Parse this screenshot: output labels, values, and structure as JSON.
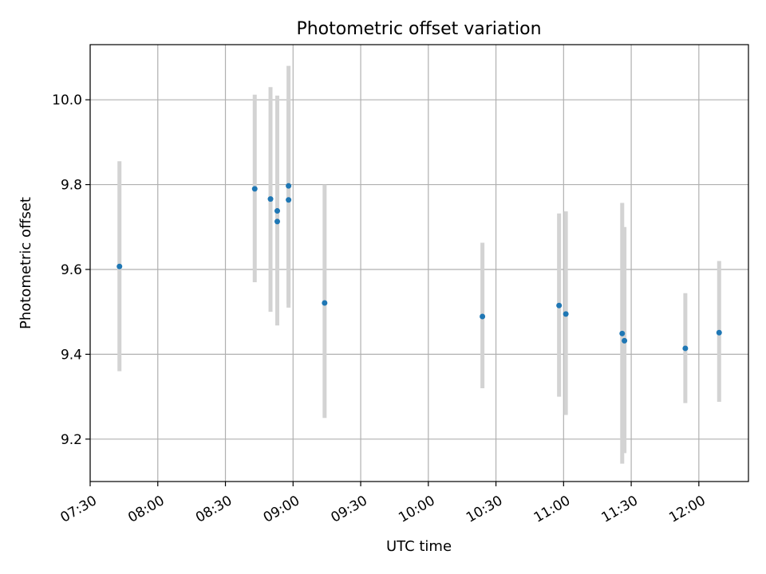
{
  "chart_data": {
    "type": "scatter",
    "title": "Photometric offset variation",
    "xlabel": "UTC time",
    "ylabel": "Photometric offset",
    "x_kind": "time",
    "xlim": [
      "07:30",
      "12:22"
    ],
    "ylim": [
      9.1,
      10.13
    ],
    "grid": true,
    "x_ticks": [
      "07:30",
      "08:00",
      "08:30",
      "09:00",
      "09:30",
      "10:00",
      "10:30",
      "11:00",
      "11:30",
      "12:00"
    ],
    "y_ticks": [
      9.2,
      9.4,
      9.6,
      9.8,
      10.0
    ],
    "y_tick_labels": [
      "9.2",
      "9.4",
      "9.6",
      "9.8",
      "10.0"
    ],
    "marker_color": "#1f77b4",
    "errorbar_color": "#d3d3d3",
    "points": [
      {
        "x": "07:43",
        "y": 9.607,
        "yerr_low": 9.36,
        "yerr_high": 9.855
      },
      {
        "x": "08:43",
        "y": 9.79,
        "yerr_low": 9.57,
        "yerr_high": 10.012
      },
      {
        "x": "08:50",
        "y": 9.766,
        "yerr_low": 9.5,
        "yerr_high": 10.03
      },
      {
        "x": "08:53",
        "y": 9.713,
        "yerr_low": 9.48,
        "yerr_high": 9.945
      },
      {
        "x": "08:53",
        "y": 9.738,
        "yerr_low": 9.468,
        "yerr_high": 10.01
      },
      {
        "x": "08:58",
        "y": 9.797,
        "yerr_low": 9.51,
        "yerr_high": 10.08
      },
      {
        "x": "08:58",
        "y": 9.764,
        "yerr_low": 9.52,
        "yerr_high": 10.0
      },
      {
        "x": "09:14",
        "y": 9.521,
        "yerr_low": 9.25,
        "yerr_high": 9.8
      },
      {
        "x": "10:24",
        "y": 9.489,
        "yerr_low": 9.32,
        "yerr_high": 9.663
      },
      {
        "x": "10:58",
        "y": 9.515,
        "yerr_low": 9.3,
        "yerr_high": 9.732
      },
      {
        "x": "11:01",
        "y": 9.495,
        "yerr_low": 9.257,
        "yerr_high": 9.737
      },
      {
        "x": "11:26",
        "y": 9.449,
        "yerr_low": 9.142,
        "yerr_high": 9.757
      },
      {
        "x": "11:27",
        "y": 9.432,
        "yerr_low": 9.167,
        "yerr_high": 9.7
      },
      {
        "x": "11:54",
        "y": 9.414,
        "yerr_low": 9.285,
        "yerr_high": 9.544
      },
      {
        "x": "12:09",
        "y": 9.451,
        "yerr_low": 9.288,
        "yerr_high": 9.62
      }
    ]
  }
}
